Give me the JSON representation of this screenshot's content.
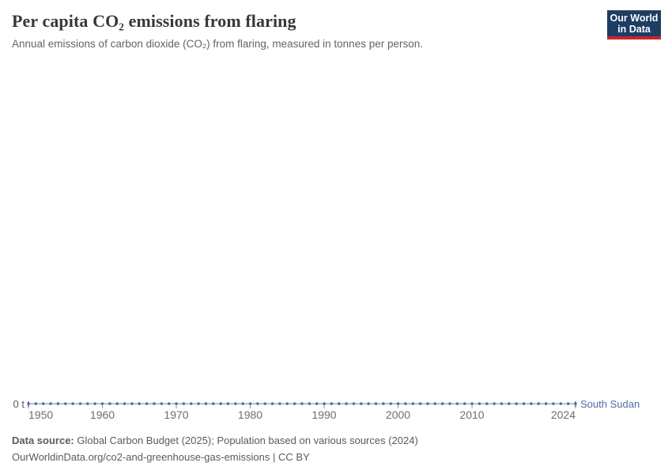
{
  "header": {
    "title": "Per capita CO₂ emissions from flaring",
    "subtitle": "Annual emissions of carbon dioxide (CO₂) from flaring, measured in tonnes per person."
  },
  "logo": {
    "line1": "Our World",
    "line2": "in Data",
    "bg_color": "#1d3d63",
    "accent_color": "#d0232a"
  },
  "chart_data": {
    "type": "line",
    "title": "Per capita CO₂ emissions from flaring",
    "subtitle": "Annual emissions of carbon dioxide (CO₂) from flaring, measured in tonnes per person.",
    "unit": "t",
    "grid": false,
    "x_range": [
      1950,
      2024
    ],
    "ylim": [
      0,
      0
    ],
    "y_zero_label": "0 t",
    "x_ticks": [
      1950,
      1960,
      1970,
      1980,
      1990,
      2000,
      2010,
      2024
    ],
    "x_tick_labels": [
      "1950",
      "1960",
      "1970",
      "1980",
      "1990",
      "2000",
      "2010",
      "2024"
    ],
    "line_color": "#4c6a9c",
    "series": [
      {
        "name": "South Sudan",
        "color": "#4c6a9c",
        "years": [
          1950,
          1951,
          1952,
          1953,
          1954,
          1955,
          1956,
          1957,
          1958,
          1959,
          1960,
          1961,
          1962,
          1963,
          1964,
          1965,
          1966,
          1967,
          1968,
          1969,
          1970,
          1971,
          1972,
          1973,
          1974,
          1975,
          1976,
          1977,
          1978,
          1979,
          1980,
          1981,
          1982,
          1983,
          1984,
          1985,
          1986,
          1987,
          1988,
          1989,
          1990,
          1991,
          1992,
          1993,
          1994,
          1995,
          1996,
          1997,
          1998,
          1999,
          2000,
          2001,
          2002,
          2003,
          2004,
          2005,
          2006,
          2007,
          2008,
          2009,
          2010,
          2011,
          2012,
          2013,
          2014,
          2015,
          2016,
          2017,
          2018,
          2019,
          2020,
          2021,
          2022,
          2023,
          2024
        ],
        "values": [
          0,
          0,
          0,
          0,
          0,
          0,
          0,
          0,
          0,
          0,
          0,
          0,
          0,
          0,
          0,
          0,
          0,
          0,
          0,
          0,
          0,
          0,
          0,
          0,
          0,
          0,
          0,
          0,
          0,
          0,
          0,
          0,
          0,
          0,
          0,
          0,
          0,
          0,
          0,
          0,
          0,
          0,
          0,
          0,
          0,
          0,
          0,
          0,
          0,
          0,
          0,
          0,
          0,
          0,
          0,
          0,
          0,
          0,
          0,
          0,
          0,
          0,
          0,
          0,
          0,
          0,
          0,
          0,
          0,
          0,
          0,
          0,
          0,
          0,
          0
        ]
      }
    ]
  },
  "footer": {
    "source_label": "Data source:",
    "source_text": " Global Carbon Budget (2025); Population based on various sources (2024)",
    "license_line": "OurWorldinData.org/co2-and-greenhouse-gas-emissions | CC BY"
  }
}
